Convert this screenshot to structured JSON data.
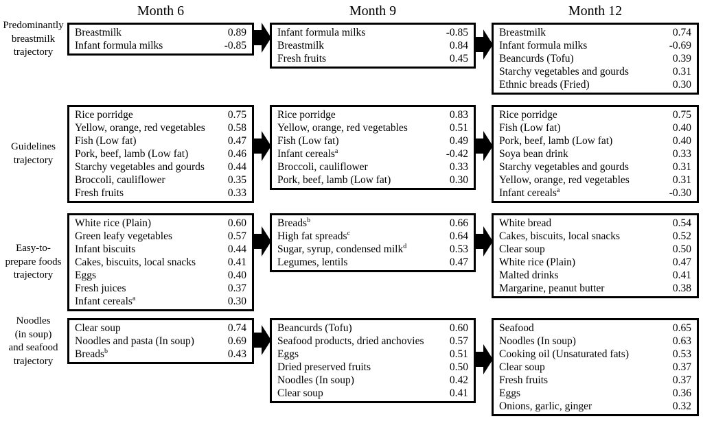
{
  "figure": {
    "background_color": "#ffffff",
    "text_color": "#000000",
    "box_border_color": "#000000",
    "arrow_color": "#000000",
    "columns": [
      "Month 6",
      "Month 9",
      "Month 12"
    ],
    "rows": [
      {
        "label": "Predominantly breastmilk trajectory",
        "label_lines": [
          "Predominantly",
          "breastmilk",
          "trajectory"
        ],
        "boxes": [
          {
            "month": "Month 6",
            "items": [
              {
                "name": "Breastmilk",
                "value": "0.89"
              },
              {
                "name": "Infant formula milks",
                "value": "-0.85"
              }
            ]
          },
          {
            "month": "Month 9",
            "items": [
              {
                "name": "Infant formula milks",
                "value": "-0.85"
              },
              {
                "name": "Breastmilk",
                "value": "0.84"
              },
              {
                "name": "Fresh fruits",
                "value": "0.45"
              }
            ]
          },
          {
            "month": "Month 12",
            "items": [
              {
                "name": "Breastmilk",
                "value": "0.74"
              },
              {
                "name": "Infant formula milks",
                "value": "-0.69"
              },
              {
                "name": "Beancurds (Tofu)",
                "value": "0.39"
              },
              {
                "name": "Starchy vegetables and gourds",
                "value": "0.31"
              },
              {
                "name": "Ethnic breads (Fried)",
                "value": "0.30"
              }
            ]
          }
        ]
      },
      {
        "label": "Guidelines trajectory",
        "label_lines": [
          "Guidelines",
          "trajectory"
        ],
        "boxes": [
          {
            "month": "Month 6",
            "items": [
              {
                "name": "Rice porridge",
                "value": "0.75"
              },
              {
                "name": "Yellow, orange, red vegetables",
                "value": "0.58"
              },
              {
                "name": "Fish (Low fat)",
                "value": "0.47"
              },
              {
                "name": "Pork, beef, lamb (Low fat)",
                "value": "0.46"
              },
              {
                "name": "Starchy vegetables and gourds",
                "value": "0.44"
              },
              {
                "name": "Broccoli, cauliflower",
                "value": "0.35"
              },
              {
                "name": "Fresh fruits",
                "value": "0.33"
              }
            ]
          },
          {
            "month": "Month 9",
            "items": [
              {
                "name": "Rice porridge",
                "value": "0.83"
              },
              {
                "name": "Yellow, orange, red vegetables",
                "value": "0.51"
              },
              {
                "name": "Fish (Low fat)",
                "value": "0.49"
              },
              {
                "name": "Infant cereals",
                "sup": "a",
                "value": "-0.42"
              },
              {
                "name": "Broccoli, cauliflower",
                "value": "0.33"
              },
              {
                "name": "Pork, beef, lamb (Low fat)",
                "value": "0.30"
              }
            ]
          },
          {
            "month": "Month 12",
            "items": [
              {
                "name": "Rice porridge",
                "value": "0.75"
              },
              {
                "name": "Fish (Low fat)",
                "value": "0.40"
              },
              {
                "name": "Pork, beef, lamb (Low fat)",
                "value": "0.40"
              },
              {
                "name": "Soya bean drink",
                "value": "0.33"
              },
              {
                "name": "Starchy vegetables and gourds",
                "value": "0.31"
              },
              {
                "name": "Yellow, orange, red vegetables",
                "value": "0.31"
              },
              {
                "name": "Infant cereals",
                "sup": "a",
                "value": "-0.30"
              }
            ]
          }
        ]
      },
      {
        "label": "Easy-to-prepare foods trajectory",
        "label_lines": [
          "Easy-to-",
          "prepare foods",
          "trajectory"
        ],
        "boxes": [
          {
            "month": "Month 6",
            "items": [
              {
                "name": "White rice (Plain)",
                "value": "0.60"
              },
              {
                "name": "Green leafy vegetables",
                "value": "0.57"
              },
              {
                "name": "Infant biscuits",
                "value": "0.44"
              },
              {
                "name": "Cakes, biscuits, local snacks",
                "value": "0.41"
              },
              {
                "name": "Eggs",
                "value": "0.40"
              },
              {
                "name": "Fresh juices",
                "value": "0.37"
              },
              {
                "name": "Infant cereals",
                "sup": "a",
                "value": "0.30"
              }
            ]
          },
          {
            "month": "Month 9",
            "items": [
              {
                "name": "Breads",
                "sup": "b",
                "value": "0.66"
              },
              {
                "name": "High fat spreads",
                "sup": "c",
                "value": "0.64"
              },
              {
                "name": "Sugar, syrup, condensed milk",
                "sup": "d",
                "value": "0.53"
              },
              {
                "name": "Legumes, lentils",
                "value": "0.47"
              }
            ]
          },
          {
            "month": "Month 12",
            "items": [
              {
                "name": "White bread",
                "value": "0.54"
              },
              {
                "name": "Cakes, biscuits, local snacks",
                "value": "0.52"
              },
              {
                "name": "Clear soup",
                "value": "0.50"
              },
              {
                "name": "White rice (Plain)",
                "value": "0.47"
              },
              {
                "name": "Malted drinks",
                "value": "0.41"
              },
              {
                "name": "Margarine, peanut butter",
                "value": "0.38"
              }
            ]
          }
        ]
      },
      {
        "label": "Noodles (in soup) and seafood trajectory",
        "label_lines": [
          "Noodles",
          "(in soup)",
          "and seafood",
          "trajectory"
        ],
        "boxes": [
          {
            "month": "Month 6",
            "items": [
              {
                "name": "Clear soup",
                "value": "0.74"
              },
              {
                "name": "Noodles and pasta (In soup)",
                "value": "0.69"
              },
              {
                "name": "Breads",
                "sup": "b",
                "value": "0.43"
              }
            ]
          },
          {
            "month": "Month 9",
            "items": [
              {
                "name": "Beancurds (Tofu)",
                "value": "0.60"
              },
              {
                "name": "Seafood products, dried anchovies",
                "value": "0.57"
              },
              {
                "name": "Eggs",
                "value": "0.51"
              },
              {
                "name": "Dried preserved fruits",
                "value": "0.50"
              },
              {
                "name": "Noodles (In soup)",
                "value": "0.42"
              },
              {
                "name": "Clear soup",
                "value": "0.41"
              }
            ]
          },
          {
            "month": "Month 12",
            "items": [
              {
                "name": "Seafood",
                "value": "0.65"
              },
              {
                "name": "Noodles (In soup)",
                "value": "0.63"
              },
              {
                "name": "Cooking oil (Unsaturated fats)",
                "value": "0.53"
              },
              {
                "name": "Clear soup",
                "value": "0.37"
              },
              {
                "name": "Fresh fruits",
                "value": "0.37"
              },
              {
                "name": "Eggs",
                "value": "0.36"
              },
              {
                "name": "Onions, garlic, ginger",
                "value": "0.32"
              }
            ]
          }
        ]
      }
    ]
  }
}
